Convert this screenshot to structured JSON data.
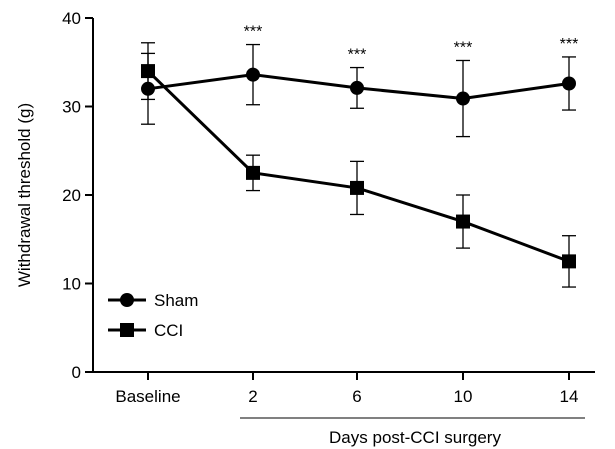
{
  "chart_data": {
    "type": "line",
    "title": "",
    "xlabel": "Days post-CCI surgery",
    "ylabel": "Withdrawal threshold (g)",
    "ylim": [
      0,
      40
    ],
    "yticks": [
      0,
      10,
      20,
      30,
      40
    ],
    "categories": [
      "Baseline",
      "2",
      "6",
      "10",
      "14"
    ],
    "grid": false,
    "legend_position": "bottom-left",
    "series": [
      {
        "name": "Sham",
        "marker": "circle",
        "values": [
          32.0,
          33.6,
          32.1,
          30.9,
          32.6
        ],
        "errors": [
          4.0,
          3.4,
          2.3,
          4.3,
          3.0
        ]
      },
      {
        "name": "CCI",
        "marker": "square",
        "values": [
          34.0,
          22.5,
          20.8,
          17.0,
          12.5
        ],
        "errors": [
          3.2,
          2.0,
          3.0,
          3.0,
          2.9
        ]
      }
    ],
    "annotations": [
      "",
      "***",
      "***",
      "***",
      "***"
    ]
  }
}
